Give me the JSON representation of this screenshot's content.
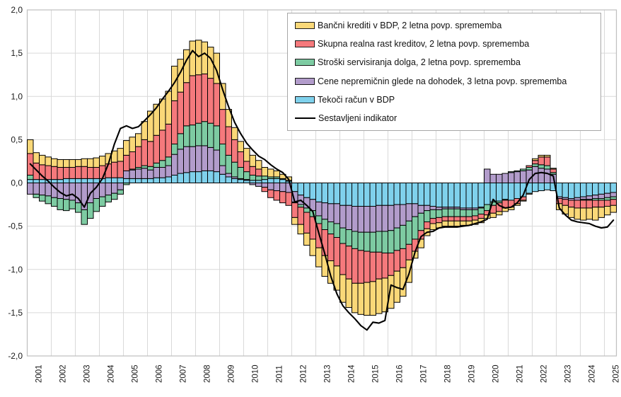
{
  "chart_data": {
    "type": "bar",
    "subtype": "stacked-bar-with-line",
    "title": "",
    "xlabel": "",
    "ylabel": "",
    "x_years": [
      "2001",
      "2002",
      "2003",
      "2004",
      "2005",
      "2006",
      "2007",
      "2008",
      "2009",
      "2010",
      "2011",
      "2012",
      "2013",
      "2014",
      "2015",
      "2016",
      "2017",
      "2018",
      "2019",
      "2020",
      "2021",
      "2022",
      "2023",
      "2024",
      "2025"
    ],
    "quarters_per_year": 4,
    "n_quarters": 98,
    "ylim": [
      -2.0,
      2.0
    ],
    "ytick_step": 0.5,
    "y_tick_labels": [
      "2,0",
      "1,5",
      "1,0",
      "0,5",
      "0,0",
      "-0,5",
      "-1,0",
      "-1,5",
      "-2,0"
    ],
    "grid": true,
    "legend_position": "top-right",
    "gridline_color": "#D9D9D9",
    "border_color": "#BFBFBF",
    "series": [
      {
        "name": "Bančni krediti v BDP, 2 letna povp. sprememba",
        "color": "#FAD878",
        "values": [
          0.16,
          0.12,
          0.11,
          0.1,
          0.09,
          0.09,
          0.09,
          0.09,
          0.08,
          0.09,
          0.1,
          0.11,
          0.11,
          0.12,
          0.13,
          0.15,
          0.17,
          0.17,
          0.15,
          0.21,
          0.35,
          0.36,
          0.36,
          0.38,
          0.4,
          0.38,
          0.38,
          0.4,
          0.4,
          0.37,
          0.36,
          0.35,
          0.3,
          0.2,
          0.14,
          0.12,
          0.15,
          0.13,
          0.1,
          0.1,
          0.09,
          0.07,
          0.05,
          0.04,
          -0.08,
          -0.11,
          -0.14,
          -0.19,
          -0.22,
          -0.24,
          -0.26,
          -0.28,
          -0.32,
          -0.33,
          -0.34,
          -0.36,
          -0.38,
          -0.39,
          -0.4,
          -0.39,
          -0.38,
          -0.36,
          -0.33,
          -0.26,
          -0.08,
          -0.1,
          -0.08,
          -0.07,
          -0.06,
          -0.06,
          -0.06,
          -0.06,
          -0.05,
          -0.05,
          -0.05,
          -0.05,
          -0.04,
          -0.05,
          -0.04,
          -0.04,
          -0.03,
          -0.02,
          -0.01,
          -0.01,
          0.02,
          0.02,
          0.02,
          0.01,
          -0.07,
          -0.1,
          -0.12,
          -0.13,
          -0.14,
          -0.13,
          -0.15,
          -0.12,
          -0.1,
          -0.08
        ]
      },
      {
        "name": "Skupna realna rast kreditov, 2 letna povp. sprememba",
        "color": "#F5797C",
        "values": [
          0.25,
          0.19,
          0.17,
          0.16,
          0.15,
          0.14,
          0.13,
          0.13,
          0.14,
          0.14,
          0.13,
          0.13,
          0.15,
          0.16,
          0.18,
          0.19,
          0.18,
          0.2,
          0.24,
          0.3,
          0.29,
          0.32,
          0.35,
          0.38,
          0.5,
          0.48,
          0.5,
          0.57,
          0.56,
          0.55,
          0.52,
          0.49,
          0.4,
          0.33,
          0.26,
          0.18,
          0.12,
          0.1,
          0.08,
          -0.05,
          -0.09,
          -0.11,
          -0.13,
          -0.15,
          -0.17,
          -0.2,
          -0.24,
          -0.26,
          -0.28,
          -0.3,
          -0.31,
          -0.33,
          -0.36,
          -0.38,
          -0.4,
          -0.38,
          -0.36,
          -0.34,
          -0.31,
          -0.29,
          -0.26,
          -0.24,
          -0.22,
          -0.18,
          -0.14,
          -0.1,
          -0.08,
          -0.06,
          -0.06,
          -0.05,
          -0.05,
          -0.05,
          -0.05,
          -0.05,
          -0.05,
          -0.05,
          -0.05,
          -0.09,
          -0.1,
          -0.09,
          -0.08,
          -0.06,
          -0.04,
          0.02,
          0.04,
          0.09,
          0.1,
          0.04,
          -0.06,
          -0.07,
          -0.08,
          -0.09,
          -0.09,
          -0.09,
          -0.08,
          -0.08,
          -0.07,
          -0.07
        ]
      },
      {
        "name": "Stroški servisiranja dolga, 2 letna povp. sprememba",
        "color": "#7DCBA2",
        "values": [
          0.05,
          -0.04,
          -0.07,
          -0.09,
          -0.1,
          -0.13,
          -0.13,
          -0.1,
          -0.11,
          -0.17,
          -0.18,
          -0.15,
          -0.11,
          -0.08,
          -0.07,
          -0.05,
          -0.02,
          0.01,
          0.02,
          0.03,
          0.04,
          0.05,
          0.08,
          0.1,
          0.12,
          0.18,
          0.24,
          0.25,
          0.26,
          0.28,
          0.28,
          0.28,
          0.25,
          0.21,
          0.17,
          0.13,
          0.09,
          0.06,
          0.05,
          0.04,
          0.02,
          0.02,
          0.01,
          0.01,
          -0.01,
          -0.03,
          -0.05,
          -0.07,
          -0.09,
          -0.12,
          -0.14,
          -0.16,
          -0.18,
          -0.19,
          -0.2,
          -0.21,
          -0.22,
          -0.23,
          -0.24,
          -0.25,
          -0.26,
          -0.26,
          -0.27,
          -0.27,
          -0.26,
          -0.2,
          -0.13,
          -0.1,
          -0.09,
          -0.09,
          -0.09,
          -0.09,
          -0.08,
          -0.08,
          -0.07,
          -0.07,
          -0.07,
          -0.04,
          -0.02,
          -0.01,
          0.01,
          0.01,
          0.02,
          0.03,
          0.03,
          0.04,
          0.04,
          0.02,
          0.0,
          0.0,
          0.0,
          0.0,
          -0.01,
          -0.01,
          -0.02,
          -0.02,
          -0.03,
          -0.03
        ]
      },
      {
        "name": "Cene nepremičnin glede na dohodek, 3 letna povp. sprememba",
        "color": "#B29CCB",
        "values": [
          -0.13,
          -0.13,
          -0.14,
          -0.15,
          -0.17,
          -0.18,
          -0.19,
          -0.2,
          -0.23,
          -0.31,
          -0.23,
          -0.18,
          -0.16,
          -0.14,
          -0.12,
          -0.08,
          0.09,
          0.1,
          0.11,
          0.12,
          0.1,
          0.12,
          0.12,
          0.13,
          0.24,
          0.28,
          0.3,
          0.29,
          0.3,
          0.29,
          0.27,
          0.25,
          0.1,
          0.04,
          0.02,
          0.01,
          0.01,
          -0.02,
          -0.04,
          -0.05,
          -0.08,
          -0.09,
          -0.1,
          -0.11,
          -0.12,
          -0.11,
          -0.12,
          -0.13,
          -0.16,
          -0.19,
          -0.21,
          -0.23,
          -0.26,
          -0.28,
          -0.29,
          -0.3,
          -0.3,
          -0.3,
          -0.3,
          -0.3,
          -0.29,
          -0.27,
          -0.24,
          -0.2,
          -0.15,
          -0.09,
          -0.06,
          -0.04,
          -0.03,
          -0.02,
          -0.02,
          -0.02,
          -0.02,
          -0.02,
          -0.02,
          -0.01,
          0.16,
          0.1,
          0.1,
          0.11,
          0.12,
          0.13,
          0.14,
          0.15,
          0.19,
          0.17,
          0.16,
          0.1,
          -0.02,
          -0.02,
          -0.02,
          -0.03,
          -0.03,
          -0.04,
          -0.04,
          -0.05,
          -0.05,
          -0.05
        ]
      },
      {
        "name": "Tekoči račun v BDP",
        "color": "#7FD1EC",
        "values": [
          0.04,
          0.04,
          0.04,
          0.04,
          0.04,
          0.04,
          0.05,
          0.05,
          0.05,
          0.05,
          0.05,
          0.05,
          0.05,
          0.06,
          0.06,
          0.06,
          0.05,
          0.05,
          0.05,
          0.05,
          0.05,
          0.06,
          0.06,
          0.07,
          0.09,
          0.11,
          0.12,
          0.13,
          0.13,
          0.14,
          0.14,
          0.13,
          0.1,
          0.07,
          0.05,
          0.04,
          0.03,
          0.03,
          0.03,
          0.04,
          0.05,
          0.05,
          0.04,
          0.02,
          -0.1,
          -0.14,
          -0.17,
          -0.19,
          -0.22,
          -0.23,
          -0.24,
          -0.24,
          -0.26,
          -0.26,
          -0.27,
          -0.27,
          -0.27,
          -0.27,
          -0.26,
          -0.26,
          -0.26,
          -0.25,
          -0.25,
          -0.24,
          -0.24,
          -0.26,
          -0.26,
          -0.27,
          -0.28,
          -0.28,
          -0.28,
          -0.28,
          -0.29,
          -0.29,
          -0.29,
          -0.28,
          -0.25,
          -0.22,
          -0.21,
          -0.19,
          -0.2,
          -0.18,
          -0.16,
          -0.12,
          -0.1,
          -0.09,
          -0.08,
          -0.09,
          -0.16,
          -0.17,
          -0.18,
          -0.17,
          -0.16,
          -0.15,
          -0.14,
          -0.13,
          -0.12,
          -0.11
        ]
      }
    ],
    "line_series": {
      "name": "Sestavljeni indikator",
      "color": "#000000",
      "values": [
        0.22,
        0.15,
        0.08,
        0.02,
        -0.05,
        -0.11,
        -0.15,
        -0.13,
        -0.18,
        -0.28,
        -0.12,
        -0.05,
        0.05,
        0.22,
        0.45,
        0.63,
        0.66,
        0.63,
        0.65,
        0.72,
        0.79,
        0.87,
        0.97,
        1.06,
        1.16,
        1.28,
        1.42,
        1.53,
        1.46,
        1.5,
        1.44,
        1.3,
        1.08,
        0.88,
        0.7,
        0.57,
        0.46,
        0.38,
        0.31,
        0.27,
        0.21,
        0.16,
        0.12,
        0.04,
        -0.22,
        -0.2,
        -0.26,
        -0.33,
        -0.58,
        -0.82,
        -1.08,
        -1.28,
        -1.42,
        -1.5,
        -1.57,
        -1.65,
        -1.7,
        -1.61,
        -1.62,
        -1.59,
        -1.18,
        -1.21,
        -1.23,
        -1.05,
        -0.8,
        -0.62,
        -0.57,
        -0.56,
        -0.52,
        -0.51,
        -0.51,
        -0.51,
        -0.5,
        -0.49,
        -0.47,
        -0.45,
        -0.42,
        -0.19,
        -0.26,
        -0.29,
        -0.28,
        -0.23,
        -0.14,
        0.04,
        0.11,
        0.12,
        0.11,
        0.08,
        -0.29,
        -0.37,
        -0.43,
        -0.45,
        -0.46,
        -0.47,
        -0.5,
        -0.52,
        -0.51,
        -0.43
      ]
    }
  }
}
